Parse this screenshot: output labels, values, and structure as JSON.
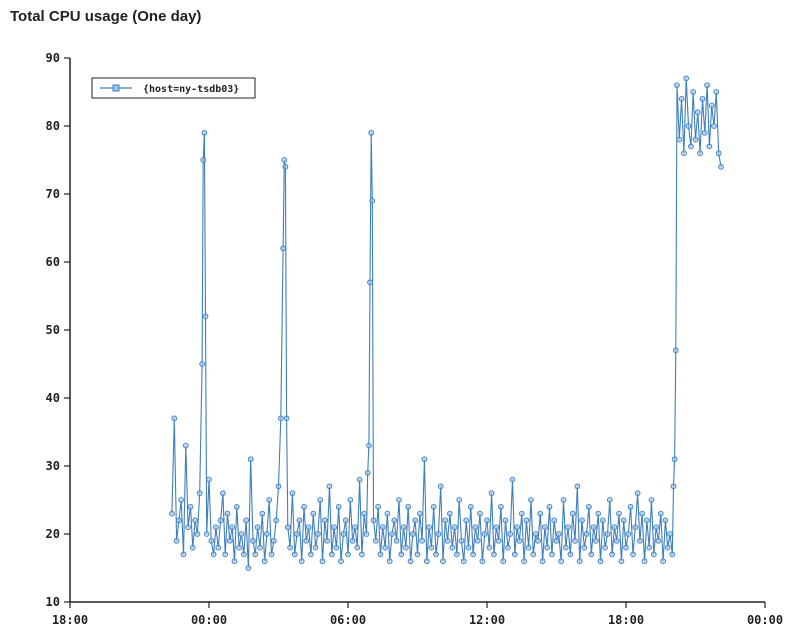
{
  "page": {
    "title": "Total CPU usage (One day)"
  },
  "colors": {
    "series": "#3e7fbf",
    "axis": "#222222",
    "marker_fill": "#9ec3e6"
  },
  "chart_data": {
    "type": "line",
    "title": "Total CPU usage (One day)",
    "xlabel": "",
    "ylabel": "",
    "grid": false,
    "legend_position": "top-left",
    "ylim": [
      10,
      90
    ],
    "yticks": [
      "10",
      "20",
      "30",
      "40",
      "50",
      "60",
      "70",
      "80",
      "90"
    ],
    "xlim_hours": [
      -6,
      24
    ],
    "xticks": [
      {
        "hour": -6,
        "label": "18:00"
      },
      {
        "hour": 0,
        "label": "00:00"
      },
      {
        "hour": 6,
        "label": "06:00"
      },
      {
        "hour": 12,
        "label": "12:00"
      },
      {
        "hour": 18,
        "label": "18:00"
      },
      {
        "hour": 24,
        "label": "00:00"
      }
    ],
    "series": [
      {
        "name": "{host=ny-tsdb03}",
        "x_hours": [
          -1.6,
          -1.5,
          -1.4,
          -1.3,
          -1.2,
          -1.1,
          -1.0,
          -0.9,
          -0.8,
          -0.7,
          -0.6,
          -0.5,
          -0.4,
          -0.3,
          -0.25,
          -0.2,
          -0.15,
          -0.1,
          0.0,
          0.1,
          0.2,
          0.3,
          0.4,
          0.5,
          0.6,
          0.7,
          0.8,
          0.9,
          1.0,
          1.1,
          1.2,
          1.3,
          1.4,
          1.5,
          1.6,
          1.7,
          1.8,
          1.9,
          2.0,
          2.1,
          2.2,
          2.3,
          2.4,
          2.5,
          2.6,
          2.7,
          2.8,
          2.9,
          3.0,
          3.1,
          3.2,
          3.25,
          3.3,
          3.35,
          3.4,
          3.5,
          3.6,
          3.7,
          3.8,
          3.9,
          4.0,
          4.1,
          4.2,
          4.3,
          4.4,
          4.5,
          4.6,
          4.7,
          4.8,
          4.9,
          5.0,
          5.1,
          5.2,
          5.3,
          5.4,
          5.5,
          5.6,
          5.7,
          5.8,
          5.9,
          6.0,
          6.1,
          6.2,
          6.3,
          6.4,
          6.5,
          6.6,
          6.7,
          6.8,
          6.85,
          6.9,
          6.95,
          7.0,
          7.05,
          7.1,
          7.2,
          7.3,
          7.4,
          7.5,
          7.6,
          7.7,
          7.8,
          7.9,
          8.0,
          8.1,
          8.2,
          8.3,
          8.4,
          8.5,
          8.6,
          8.7,
          8.8,
          8.9,
          9.0,
          9.1,
          9.2,
          9.3,
          9.4,
          9.5,
          9.6,
          9.7,
          9.8,
          9.9,
          10.0,
          10.1,
          10.2,
          10.3,
          10.4,
          10.5,
          10.6,
          10.7,
          10.8,
          10.9,
          11.0,
          11.1,
          11.2,
          11.3,
          11.4,
          11.5,
          11.6,
          11.7,
          11.8,
          11.9,
          12.0,
          12.1,
          12.2,
          12.3,
          12.4,
          12.5,
          12.6,
          12.7,
          12.8,
          12.9,
          13.0,
          13.1,
          13.2,
          13.3,
          13.4,
          13.5,
          13.6,
          13.7,
          13.8,
          13.9,
          14.0,
          14.1,
          14.2,
          14.3,
          14.4,
          14.5,
          14.6,
          14.7,
          14.8,
          14.9,
          15.0,
          15.1,
          15.2,
          15.3,
          15.4,
          15.5,
          15.6,
          15.7,
          15.8,
          15.9,
          16.0,
          16.1,
          16.2,
          16.3,
          16.4,
          16.5,
          16.6,
          16.7,
          16.8,
          16.9,
          17.0,
          17.1,
          17.2,
          17.3,
          17.4,
          17.5,
          17.6,
          17.7,
          17.8,
          17.9,
          18.0,
          18.1,
          18.2,
          18.3,
          18.4,
          18.5,
          18.6,
          18.7,
          18.8,
          18.9,
          19.0,
          19.1,
          19.2,
          19.3,
          19.4,
          19.5,
          19.6,
          19.7,
          19.8,
          19.9,
          20.0,
          20.05,
          20.1,
          20.15,
          20.2,
          20.3,
          20.4,
          20.5,
          20.6,
          20.7,
          20.8,
          20.9,
          21.0,
          21.1,
          21.2,
          21.3,
          21.4,
          21.5,
          21.6,
          21.7,
          21.8,
          21.9,
          22.0,
          22.1
        ],
        "values": [
          23,
          37,
          19,
          22,
          25,
          17,
          33,
          21,
          24,
          18,
          22,
          20,
          26,
          45,
          75,
          79,
          52,
          20,
          28,
          19,
          17,
          21,
          18,
          22,
          26,
          17,
          23,
          19,
          21,
          16,
          24,
          18,
          20,
          17,
          22,
          15,
          31,
          19,
          17,
          21,
          18,
          23,
          16,
          20,
          25,
          17,
          19,
          22,
          27,
          37,
          62,
          75,
          74,
          37,
          21,
          18,
          26,
          17,
          20,
          22,
          16,
          24,
          19,
          21,
          17,
          23,
          18,
          20,
          25,
          16,
          22,
          19,
          27,
          17,
          21,
          18,
          24,
          16,
          20,
          22,
          17,
          25,
          19,
          21,
          18,
          28,
          17,
          23,
          20,
          29,
          33,
          57,
          79,
          69,
          22,
          19,
          24,
          17,
          21,
          18,
          23,
          16,
          20,
          22,
          19,
          25,
          17,
          21,
          18,
          24,
          16,
          20,
          22,
          17,
          23,
          19,
          31,
          16,
          21,
          18,
          24,
          17,
          20,
          27,
          16,
          22,
          19,
          23,
          18,
          21,
          17,
          25,
          19,
          16,
          22,
          18,
          24,
          17,
          21,
          19,
          23,
          16,
          20,
          22,
          18,
          26,
          17,
          21,
          19,
          24,
          16,
          22,
          18,
          20,
          28,
          17,
          21,
          19,
          23,
          16,
          22,
          18,
          25,
          17,
          20,
          19,
          23,
          16,
          21,
          18,
          24,
          17,
          22,
          19,
          20,
          16,
          25,
          18,
          21,
          17,
          23,
          19,
          27,
          16,
          22,
          18,
          20,
          24,
          17,
          21,
          19,
          23,
          16,
          22,
          18,
          20,
          25,
          17,
          21,
          19,
          23,
          16,
          22,
          18,
          20,
          24,
          17,
          21,
          26,
          19,
          23,
          16,
          22,
          18,
          25,
          17,
          21,
          19,
          23,
          16,
          22,
          18,
          20,
          17,
          27,
          31,
          47,
          86,
          78,
          84,
          76,
          87,
          80,
          77,
          85,
          78,
          82,
          76,
          84,
          79,
          86,
          77,
          83,
          80,
          85,
          76,
          74
        ]
      }
    ]
  }
}
